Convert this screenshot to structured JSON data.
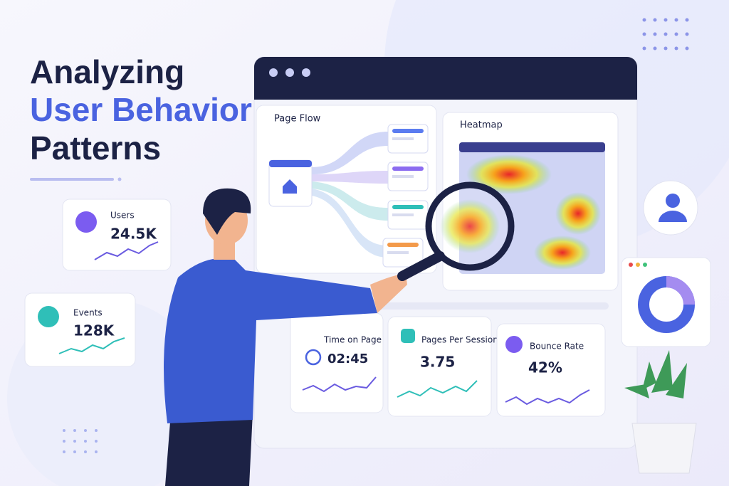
{
  "title": {
    "line1": "Analyzing",
    "line2": "User Behavior",
    "line3": "Patterns"
  },
  "side_cards": [
    {
      "label": "Users",
      "value": "24.5K"
    },
    {
      "label": "Events",
      "value": "128K"
    }
  ],
  "window": {
    "panels": [
      {
        "title": "Page Flow"
      },
      {
        "title": "Heatmap"
      }
    ],
    "metrics": [
      {
        "label": "Time on Page",
        "value": "02:45"
      },
      {
        "label": "Pages Per Session",
        "value": "3.75"
      },
      {
        "label": "Bounce Rate",
        "value": "42%"
      }
    ]
  }
}
